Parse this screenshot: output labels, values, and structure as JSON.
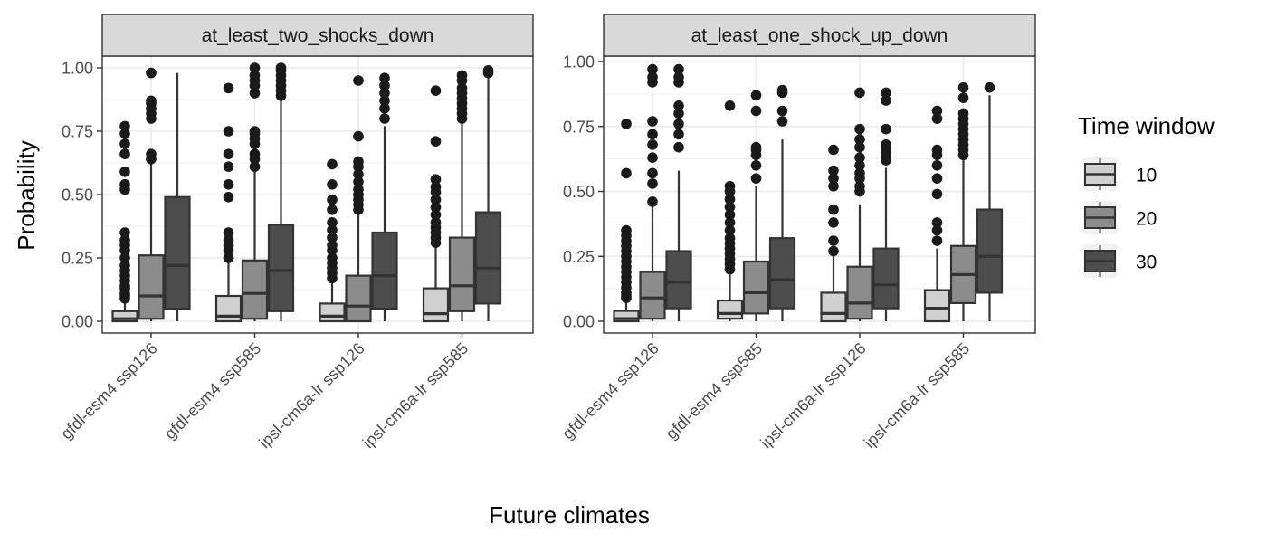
{
  "chart_data": {
    "type": "boxplot",
    "xlabel": "Future climates",
    "ylabel": "Probability",
    "ylim": [
      -0.04,
      1.04
    ],
    "yticks": [
      0.0,
      0.25,
      0.5,
      0.75,
      1.0
    ],
    "ytick_labels": [
      "0.00",
      "0.25",
      "0.50",
      "0.75",
      "1.00"
    ],
    "categories": [
      "gfdl-esm4 ssp126",
      "gfdl-esm4 ssp585",
      "ipsl-cm6a-lr ssp126",
      "ipsl-cm6a-lr ssp585"
    ],
    "legend": {
      "title": "Time window",
      "placement": "right",
      "entries": [
        {
          "label": "10",
          "color": "#d0d0d0"
        },
        {
          "label": "20",
          "color": "#8c8c8c"
        },
        {
          "label": "30",
          "color": "#4d4d4d"
        }
      ]
    },
    "grid": true,
    "panels": [
      {
        "title": "at_least_two_shocks_down",
        "groups": [
          {
            "category": "gfdl-esm4 ssp126",
            "boxes": [
              {
                "window": "10",
                "low": 0.0,
                "q1": 0.0,
                "median": 0.01,
                "q3": 0.04,
                "high": 0.08,
                "outliers": [
                  0.09,
                  0.1,
                  0.11,
                  0.13,
                  0.14,
                  0.16,
                  0.18,
                  0.2,
                  0.22,
                  0.25,
                  0.28,
                  0.3,
                  0.32,
                  0.35,
                  0.52,
                  0.54,
                  0.59,
                  0.66,
                  0.7,
                  0.74,
                  0.77
                ]
              },
              {
                "window": "20",
                "low": 0.0,
                "q1": 0.01,
                "median": 0.1,
                "q3": 0.26,
                "high": 0.62,
                "outliers": [
                  0.64,
                  0.66,
                  0.8,
                  0.82,
                  0.84,
                  0.86,
                  0.87,
                  0.98
                ]
              },
              {
                "window": "30",
                "low": 0.0,
                "q1": 0.05,
                "median": 0.22,
                "q3": 0.49,
                "high": 0.98,
                "outliers": []
              }
            ]
          },
          {
            "category": "gfdl-esm4 ssp585",
            "boxes": [
              {
                "window": "10",
                "low": 0.0,
                "q1": 0.0,
                "median": 0.02,
                "q3": 0.1,
                "high": 0.23,
                "outliers": [
                  0.25,
                  0.28,
                  0.3,
                  0.32,
                  0.35,
                  0.49,
                  0.54,
                  0.61,
                  0.66,
                  0.75,
                  0.92
                ]
              },
              {
                "window": "20",
                "low": 0.0,
                "q1": 0.01,
                "median": 0.11,
                "q3": 0.24,
                "high": 0.59,
                "outliers": [
                  0.61,
                  0.64,
                  0.66,
                  0.7,
                  0.72,
                  0.74,
                  0.75,
                  0.9,
                  0.93,
                  0.95,
                  0.97,
                  1.0
                ]
              },
              {
                "window": "30",
                "low": 0.0,
                "q1": 0.04,
                "median": 0.2,
                "q3": 0.38,
                "high": 0.87,
                "outliers": [
                  0.89,
                  0.91,
                  0.93,
                  0.95,
                  0.97,
                  0.99,
                  1.0
                ]
              }
            ]
          },
          {
            "category": "ipsl-cm6a-lr ssp126",
            "boxes": [
              {
                "window": "10",
                "low": 0.0,
                "q1": 0.0,
                "median": 0.02,
                "q3": 0.07,
                "high": 0.16,
                "outliers": [
                  0.17,
                  0.19,
                  0.21,
                  0.23,
                  0.25,
                  0.28,
                  0.3,
                  0.33,
                  0.36,
                  0.39,
                  0.44,
                  0.48,
                  0.54,
                  0.62
                ]
              },
              {
                "window": "20",
                "low": 0.0,
                "q1": 0.0,
                "median": 0.06,
                "q3": 0.18,
                "high": 0.42,
                "outliers": [
                  0.44,
                  0.46,
                  0.48,
                  0.5,
                  0.52,
                  0.55,
                  0.58,
                  0.61,
                  0.63,
                  0.73,
                  0.95
                ]
              },
              {
                "window": "30",
                "low": 0.0,
                "q1": 0.05,
                "median": 0.18,
                "q3": 0.35,
                "high": 0.77,
                "outliers": [
                  0.8,
                  0.84,
                  0.87,
                  0.9,
                  0.93,
                  0.96
                ]
              }
            ]
          },
          {
            "category": "ipsl-cm6a-lr ssp585",
            "boxes": [
              {
                "window": "10",
                "low": 0.0,
                "q1": 0.0,
                "median": 0.03,
                "q3": 0.13,
                "high": 0.3,
                "outliers": [
                  0.31,
                  0.33,
                  0.35,
                  0.37,
                  0.39,
                  0.42,
                  0.45,
                  0.48,
                  0.51,
                  0.53,
                  0.56,
                  0.71,
                  0.91
                ]
              },
              {
                "window": "20",
                "low": 0.0,
                "q1": 0.04,
                "median": 0.14,
                "q3": 0.33,
                "high": 0.78,
                "outliers": [
                  0.8,
                  0.82,
                  0.84,
                  0.86,
                  0.88,
                  0.9,
                  0.92,
                  0.95,
                  0.97
                ]
              },
              {
                "window": "30",
                "low": 0.0,
                "q1": 0.07,
                "median": 0.21,
                "q3": 0.43,
                "high": 0.96,
                "outliers": [
                  0.98,
                  0.99
                ]
              }
            ]
          }
        ]
      },
      {
        "title": "at_least_one_shock_up_down",
        "groups": [
          {
            "category": "gfdl-esm4 ssp126",
            "boxes": [
              {
                "window": "10",
                "low": 0.0,
                "q1": 0.0,
                "median": 0.01,
                "q3": 0.04,
                "high": 0.08,
                "outliers": [
                  0.09,
                  0.1,
                  0.11,
                  0.13,
                  0.15,
                  0.17,
                  0.19,
                  0.21,
                  0.23,
                  0.25,
                  0.27,
                  0.29,
                  0.31,
                  0.33,
                  0.35,
                  0.57,
                  0.76
                ]
              },
              {
                "window": "20",
                "low": 0.0,
                "q1": 0.01,
                "median": 0.09,
                "q3": 0.19,
                "high": 0.44,
                "outliers": [
                  0.46,
                  0.53,
                  0.57,
                  0.63,
                  0.68,
                  0.72,
                  0.77,
                  0.92,
                  0.94,
                  0.97
                ]
              },
              {
                "window": "30",
                "low": 0.0,
                "q1": 0.05,
                "median": 0.15,
                "q3": 0.27,
                "high": 0.58,
                "outliers": [
                  0.67,
                  0.72,
                  0.76,
                  0.8,
                  0.83,
                  0.92,
                  0.94,
                  0.97
                ]
              }
            ]
          },
          {
            "category": "gfdl-esm4 ssp585",
            "boxes": [
              {
                "window": "10",
                "low": 0.0,
                "q1": 0.01,
                "median": 0.03,
                "q3": 0.08,
                "high": 0.18,
                "outliers": [
                  0.2,
                  0.22,
                  0.24,
                  0.26,
                  0.28,
                  0.3,
                  0.32,
                  0.35,
                  0.38,
                  0.41,
                  0.44,
                  0.47,
                  0.5,
                  0.52,
                  0.83
                ]
              },
              {
                "window": "20",
                "low": 0.0,
                "q1": 0.03,
                "median": 0.11,
                "q3": 0.23,
                "high": 0.52,
                "outliers": [
                  0.55,
                  0.6,
                  0.64,
                  0.66,
                  0.67,
                  0.81,
                  0.87
                ]
              },
              {
                "window": "30",
                "low": 0.0,
                "q1": 0.05,
                "median": 0.16,
                "q3": 0.32,
                "high": 0.7,
                "outliers": [
                  0.77,
                  0.81,
                  0.88,
                  0.89
                ]
              }
            ]
          },
          {
            "category": "ipsl-cm6a-lr ssp126",
            "boxes": [
              {
                "window": "10",
                "low": 0.0,
                "q1": 0.0,
                "median": 0.03,
                "q3": 0.11,
                "high": 0.25,
                "outliers": [
                  0.27,
                  0.31,
                  0.38,
                  0.43,
                  0.52,
                  0.55,
                  0.58,
                  0.66
                ]
              },
              {
                "window": "20",
                "low": 0.0,
                "q1": 0.01,
                "median": 0.07,
                "q3": 0.21,
                "high": 0.45,
                "outliers": [
                  0.5,
                  0.52,
                  0.55,
                  0.57,
                  0.6,
                  0.63,
                  0.67,
                  0.7,
                  0.74,
                  0.88
                ]
              },
              {
                "window": "30",
                "low": 0.0,
                "q1": 0.05,
                "median": 0.14,
                "q3": 0.28,
                "high": 0.59,
                "outliers": [
                  0.62,
                  0.64,
                  0.66,
                  0.68,
                  0.74,
                  0.85,
                  0.88
                ]
              }
            ]
          },
          {
            "category": "ipsl-cm6a-lr ssp585",
            "boxes": [
              {
                "window": "10",
                "low": 0.0,
                "q1": 0.0,
                "median": 0.05,
                "q3": 0.12,
                "high": 0.28,
                "outliers": [
                  0.31,
                  0.35,
                  0.38,
                  0.49,
                  0.55,
                  0.6,
                  0.64,
                  0.66,
                  0.78,
                  0.81
                ]
              },
              {
                "window": "20",
                "low": 0.0,
                "q1": 0.07,
                "median": 0.18,
                "q3": 0.29,
                "high": 0.62,
                "outliers": [
                  0.64,
                  0.66,
                  0.68,
                  0.7,
                  0.72,
                  0.74,
                  0.76,
                  0.78,
                  0.8,
                  0.86,
                  0.9
                ]
              },
              {
                "window": "30",
                "low": 0.0,
                "q1": 0.11,
                "median": 0.25,
                "q3": 0.43,
                "high": 0.87,
                "outliers": [
                  0.9
                ]
              }
            ]
          }
        ]
      }
    ]
  }
}
